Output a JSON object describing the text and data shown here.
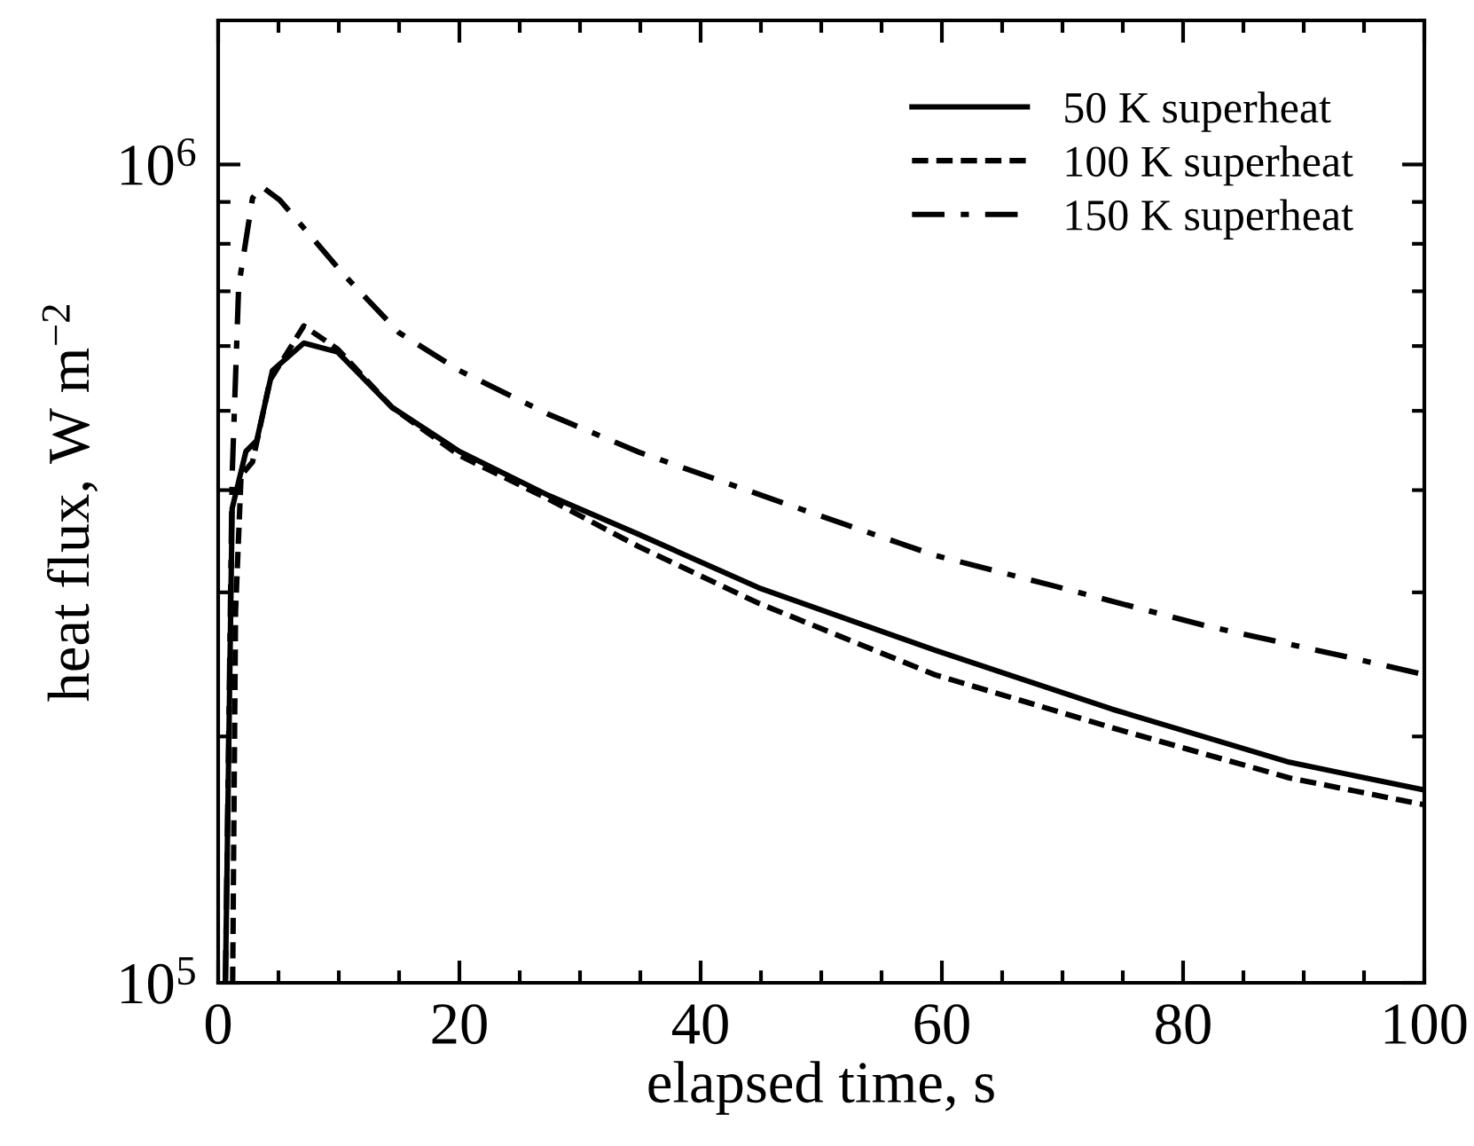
{
  "chart_data": {
    "type": "line",
    "xlabel": "elapsed time, s",
    "ylabel": "heat flux, W m$^{−2}$",
    "log": "y",
    "xlim": [
      0,
      100
    ],
    "ylim": [
      100000,
      1500000
    ],
    "xticks": [
      0,
      {
        "value": 5,
        "label": null
      },
      {
        "value": 10,
        "label": null
      },
      {
        "value": 15,
        "label": null
      },
      20,
      {
        "value": 25,
        "label": null
      },
      {
        "value": 30,
        "label": null
      },
      {
        "value": 35,
        "label": null
      },
      40,
      {
        "value": 45,
        "label": null
      },
      {
        "value": 50,
        "label": null
      },
      {
        "value": 55,
        "label": null
      },
      60,
      {
        "value": 65,
        "label": null
      },
      {
        "value": 70,
        "label": null
      },
      {
        "value": 75,
        "label": null
      },
      80,
      {
        "value": 85,
        "label": null
      },
      {
        "value": 90,
        "label": null
      },
      {
        "value": 95,
        "label": null
      },
      100
    ],
    "yticks": [
      {
        "value": 100000,
        "label": "10$^{5}$"
      },
      {
        "value": 200000,
        "label": null
      },
      {
        "value": 300000,
        "label": null
      },
      {
        "value": 400000,
        "label": null
      },
      {
        "value": 500000,
        "label": null
      },
      {
        "value": 600000,
        "label": null
      },
      {
        "value": 700000,
        "label": null
      },
      {
        "value": 800000,
        "label": null
      },
      {
        "value": 900000,
        "label": null
      },
      {
        "value": 1000000,
        "label": "10$^{6}$"
      }
    ],
    "grid": false,
    "legend": "top right",
    "marker": "none",
    "series": [
      {
        "name": "50 K superheat",
        "color": "#000000",
        "line_style": "solid",
        "x": [
          0.6,
          1.16,
          2.3,
          3.2,
          4.5,
          7.1,
          9.9,
          14.4,
          20,
          27.4,
          34.9,
          44.8,
          59.4,
          74.1,
          88.8,
          100
        ],
        "values": [
          100000,
          380000,
          446000,
          460000,
          560000,
          605000,
          590000,
          505000,
          446000,
          394000,
          353000,
          304000,
          255000,
          216000,
          186000,
          172000
        ]
      },
      {
        "name": "100 K superheat",
        "color": "#000000",
        "line_style": "dashed",
        "x": [
          1.2,
          1.44,
          1.9,
          2.85,
          4.3,
          7.1,
          9.9,
          14.4,
          20,
          27.4,
          34.9,
          44.8,
          59.4,
          74.1,
          88.8,
          100
        ],
        "values": [
          100000,
          284000,
          417000,
          433000,
          545000,
          635000,
          595000,
          505000,
          441000,
          390000,
          341000,
          291000,
          238000,
          205000,
          178000,
          165000
        ]
      },
      {
        "name": "150 K superheat",
        "color": "#000000",
        "line_style": "dashdot",
        "x": [
          0.6,
          1.16,
          1.7,
          2.85,
          3.6,
          5.1,
          7.6,
          10.4,
          15,
          20,
          27.4,
          34.9,
          46.6,
          59.4,
          69.1,
          81.9,
          93.7,
          100
        ],
        "values": [
          100000,
          417000,
          710000,
          910000,
          940000,
          905000,
          820000,
          734000,
          623000,
          560000,
          495000,
          445000,
          387000,
          333000,
          306000,
          273000,
          250000,
          238000
        ]
      }
    ]
  }
}
